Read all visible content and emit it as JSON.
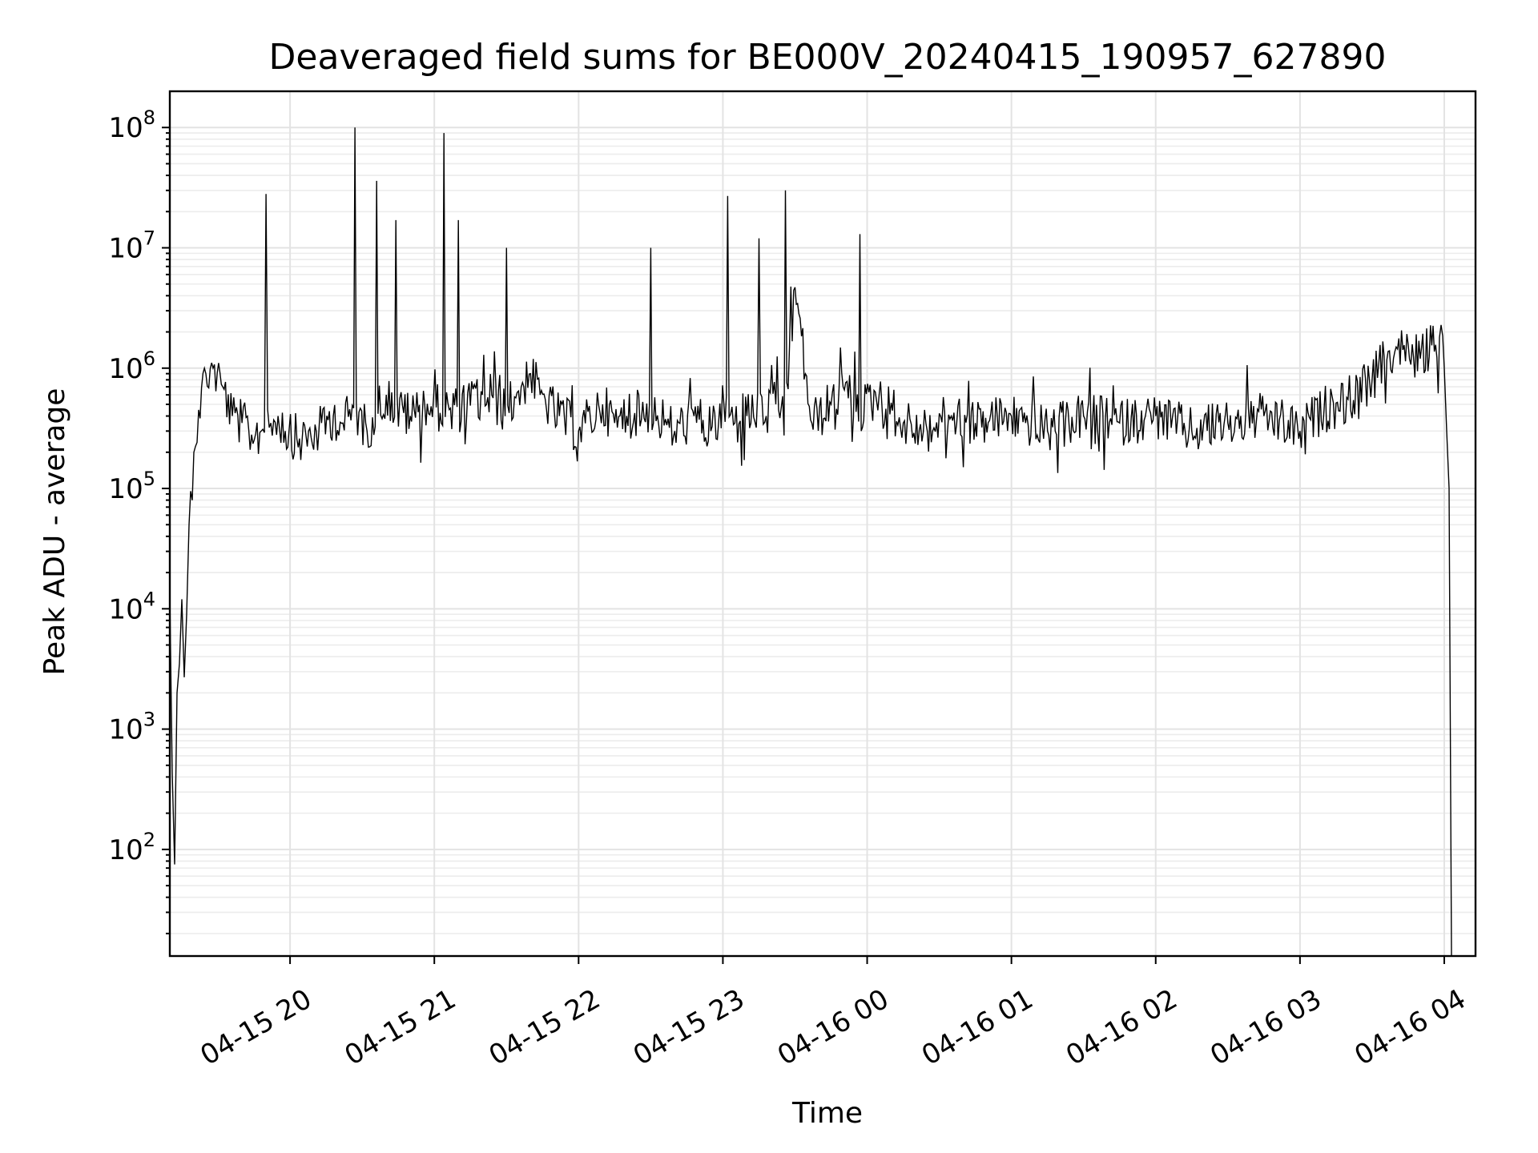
{
  "chart_data": {
    "type": "line",
    "title": "Deaveraged field sums for BE000V_20240415_190957_627890",
    "xlabel": "Time",
    "ylabel": "Peak ADU - average",
    "yscale": "log",
    "ylim": [
      13,
      200000000
    ],
    "xlim": [
      "2024-04-15 19:10",
      "2024-04-16 04:13"
    ],
    "x_ticks": [
      {
        "time": "2024-04-15 20:00",
        "label": "04-15 20"
      },
      {
        "time": "2024-04-15 21:00",
        "label": "04-15 21"
      },
      {
        "time": "2024-04-15 22:00",
        "label": "04-15 22"
      },
      {
        "time": "2024-04-15 23:00",
        "label": "04-15 23"
      },
      {
        "time": "2024-04-16 00:00",
        "label": "04-16 00"
      },
      {
        "time": "2024-04-16 01:00",
        "label": "04-16 01"
      },
      {
        "time": "2024-04-16 02:00",
        "label": "04-16 02"
      },
      {
        "time": "2024-04-16 03:00",
        "label": "04-16 03"
      },
      {
        "time": "2024-04-16 04:00",
        "label": "04-16 04"
      }
    ],
    "y_ticks": [
      {
        "value": 100,
        "base": "10",
        "exp": "2"
      },
      {
        "value": 1000,
        "base": "10",
        "exp": "3"
      },
      {
        "value": 10000,
        "base": "10",
        "exp": "4"
      },
      {
        "value": 100000,
        "base": "10",
        "exp": "5"
      },
      {
        "value": 1000000,
        "base": "10",
        "exp": "6"
      },
      {
        "value": 10000000,
        "base": "10",
        "exp": "7"
      },
      {
        "value": 100000000,
        "base": "10",
        "exp": "8"
      }
    ],
    "grid": true,
    "legend": "none",
    "colors": {
      "series": "#000000",
      "grid": "#e3e3e3",
      "axes": "#000000"
    },
    "series": [
      {
        "x": [
          "2024-04-15 19:10",
          "2024-04-15 19:10",
          "2024-04-15 19:11",
          "2024-04-15 19:12",
          "2024-04-15 19:13",
          "2024-04-15 19:14",
          "2024-04-15 19:15",
          "2024-04-15 19:16",
          "2024-04-15 19:17",
          "2024-04-15 19:18",
          "2024-04-15 19:20",
          "2024-04-15 19:22",
          "2024-04-15 19:25",
          "2024-04-15 19:28",
          "2024-04-15 19:32",
          "2024-04-15 19:36",
          "2024-04-15 19:40",
          "2024-04-15 19:44",
          "2024-04-15 19:48",
          "2024-04-15 19:50",
          "2024-04-15 19:52",
          "2024-04-15 19:55",
          "2024-04-15 19:58",
          "2024-04-15 20:05",
          "2024-04-15 20:12",
          "2024-04-15 20:18",
          "2024-04-15 20:22",
          "2024-04-15 20:27",
          "2024-04-15 20:32",
          "2024-04-15 20:36",
          "2024-04-15 20:40",
          "2024-04-15 20:44",
          "2024-04-15 20:50",
          "2024-04-15 20:56",
          "2024-04-15 21:04",
          "2024-04-15 21:10",
          "2024-04-15 21:20",
          "2024-04-15 21:30",
          "2024-04-15 21:40",
          "2024-04-15 21:44",
          "2024-04-15 21:52",
          "2024-04-15 22:00",
          "2024-04-15 22:10",
          "2024-04-15 22:15",
          "2024-04-15 22:20",
          "2024-04-15 22:30",
          "2024-04-15 22:40",
          "2024-04-15 22:48",
          "2024-04-15 22:55",
          "2024-04-15 23:02",
          "2024-04-15 23:05",
          "2024-04-15 23:10",
          "2024-04-15 23:15",
          "2024-04-15 23:18",
          "2024-04-15 23:22",
          "2024-04-15 23:26",
          "2024-04-15 23:30",
          "2024-04-15 23:37",
          "2024-04-15 23:45",
          "2024-04-15 23:50",
          "2024-04-15 23:57",
          "2024-04-16 00:05",
          "2024-04-16 00:15",
          "2024-04-16 00:25",
          "2024-04-16 00:35",
          "2024-04-16 00:45",
          "2024-04-16 01:00",
          "2024-04-16 01:15",
          "2024-04-16 01:30",
          "2024-04-16 01:45",
          "2024-04-16 02:00",
          "2024-04-16 02:15",
          "2024-04-16 02:30",
          "2024-04-16 02:45",
          "2024-04-16 03:00",
          "2024-04-16 03:10",
          "2024-04-16 03:20",
          "2024-04-16 03:30",
          "2024-04-16 03:40",
          "2024-04-16 03:50",
          "2024-04-16 03:58",
          "2024-04-16 04:00",
          "2024-04-16 04:01",
          "2024-04-16 04:02",
          "2024-04-16 04:03"
        ],
        "y": [
          13,
          13000,
          430,
          75,
          2000,
          3500,
          12000,
          2700,
          9000,
          50000,
          200000,
          450000,
          900000,
          1000000,
          700000,
          400000,
          350000,
          280000,
          300000,
          28000000,
          350000,
          400000,
          300000,
          250000,
          300000,
          400000,
          350000,
          100000000,
          300000,
          36000000,
          600000,
          17000000,
          400000,
          500000,
          90000000,
          17000000,
          600000,
          10000000,
          900000,
          600000,
          400000,
          300000,
          500000,
          350000,
          400000,
          10000000,
          300000,
          400000,
          300000,
          27000000,
          350000,
          400000,
          12000000,
          400000,
          500000,
          30000000,
          4700000,
          350000,
          500000,
          700000,
          13000000,
          600000,
          350000,
          300000,
          400000,
          350000,
          400000,
          300000,
          400000,
          350000,
          400000,
          300000,
          350000,
          400000,
          300000,
          450000,
          550000,
          800000,
          1500000,
          1200000,
          1800000,
          1000000,
          300000,
          100000,
          13
        ]
      }
    ]
  }
}
